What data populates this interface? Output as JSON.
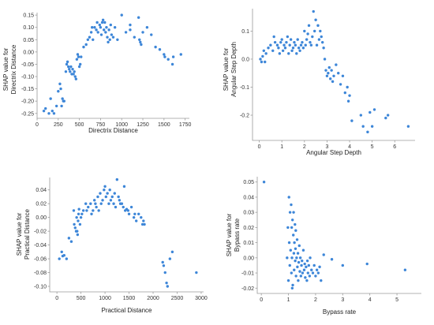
{
  "chart_data": [
    {
      "type": "scatter",
      "xlabel": "Directrix Distance",
      "ylabel_lines": [
        "SHAP value for",
        "Directrix Distance"
      ],
      "xlim": [
        0,
        1800
      ],
      "ylim": [
        -0.27,
        0.16
      ],
      "xticks": [
        0,
        250,
        500,
        750,
        1000,
        1250,
        1500,
        1750
      ],
      "yticks": [
        0.15,
        0.1,
        0.05,
        0.0,
        -0.05,
        -0.1,
        -0.15,
        -0.2,
        -0.25
      ],
      "ytick_labels": [
        "0.15",
        "0.10",
        "0.05",
        "0.00",
        "-0.05",
        "-0.10",
        "-0.15",
        "-0.20",
        "-0.25"
      ],
      "color": "#3d86d8",
      "points": [
        [
          80,
          -0.24
        ],
        [
          100,
          -0.23
        ],
        [
          140,
          -0.25
        ],
        [
          160,
          -0.19
        ],
        [
          180,
          -0.24
        ],
        [
          200,
          -0.25
        ],
        [
          230,
          -0.22
        ],
        [
          250,
          -0.16
        ],
        [
          270,
          -0.13
        ],
        [
          280,
          -0.15
        ],
        [
          290,
          -0.22
        ],
        [
          300,
          -0.19
        ],
        [
          310,
          -0.2
        ],
        [
          320,
          -0.2
        ],
        [
          340,
          -0.08
        ],
        [
          350,
          -0.05
        ],
        [
          360,
          -0.04
        ],
        [
          370,
          -0.06
        ],
        [
          380,
          -0.07
        ],
        [
          390,
          -0.08
        ],
        [
          400,
          -0.06
        ],
        [
          410,
          -0.09
        ],
        [
          420,
          -0.07
        ],
        [
          430,
          -0.09
        ],
        [
          440,
          -0.08
        ],
        [
          450,
          -0.1
        ],
        [
          460,
          -0.11
        ],
        [
          470,
          -0.03
        ],
        [
          480,
          -0.01
        ],
        [
          490,
          -0.02
        ],
        [
          500,
          -0.06
        ],
        [
          510,
          -0.05
        ],
        [
          520,
          -0.02
        ],
        [
          550,
          0.02
        ],
        [
          580,
          0.03
        ],
        [
          600,
          0.05
        ],
        [
          620,
          0.06
        ],
        [
          640,
          0.08
        ],
        [
          650,
          0.1
        ],
        [
          660,
          0.05
        ],
        [
          680,
          0.1
        ],
        [
          700,
          0.09
        ],
        [
          710,
          0.12
        ],
        [
          720,
          0.08
        ],
        [
          740,
          0.11
        ],
        [
          750,
          0.1
        ],
        [
          760,
          0.07
        ],
        [
          770,
          0.12
        ],
        [
          780,
          0.13
        ],
        [
          790,
          0.09
        ],
        [
          800,
          0.12
        ],
        [
          810,
          0.08
        ],
        [
          820,
          0.1
        ],
        [
          830,
          0.06
        ],
        [
          840,
          0.04
        ],
        [
          850,
          0.09
        ],
        [
          860,
          0.05
        ],
        [
          870,
          0.11
        ],
        [
          880,
          0.07
        ],
        [
          900,
          0.06
        ],
        [
          920,
          0.1
        ],
        [
          950,
          0.05
        ],
        [
          1000,
          0.15
        ],
        [
          1050,
          0.08
        ],
        [
          1100,
          0.11
        ],
        [
          1150,
          0.06
        ],
        [
          1200,
          0.14
        ],
        [
          1210,
          0.05
        ],
        [
          1220,
          0.04
        ],
        [
          1230,
          0.03
        ],
        [
          1300,
          0.1
        ],
        [
          1400,
          0.02
        ],
        [
          1450,
          0.01
        ],
        [
          1500,
          -0.01
        ],
        [
          1510,
          -0.02
        ],
        [
          1550,
          -0.03
        ],
        [
          1600,
          -0.05
        ],
        [
          1610,
          -0.02
        ],
        [
          1700,
          -0.01
        ],
        [
          1350,
          0.07
        ],
        [
          1250,
          0.08
        ],
        [
          1100,
          0.09
        ]
      ]
    },
    {
      "type": "scatter",
      "xlabel": "Angular Step Depth",
      "ylabel_lines": [
        "SHAP value for",
        "Angular Step Depth"
      ],
      "xlim": [
        -0.3,
        6.9
      ],
      "ylim": [
        -0.29,
        0.18
      ],
      "xticks": [
        0,
        1,
        2,
        3,
        4,
        5,
        6
      ],
      "yticks": [
        0.1,
        0.0,
        -0.1,
        -0.2
      ],
      "ytick_labels": [
        "0.1",
        "0.0",
        "-0.1",
        "-0.2"
      ],
      "color": "#3d86d8",
      "points": [
        [
          0.05,
          0.0
        ],
        [
          0.1,
          -0.01
        ],
        [
          0.15,
          0.01
        ],
        [
          0.2,
          0.03
        ],
        [
          0.25,
          -0.01
        ],
        [
          0.3,
          0.02
        ],
        [
          0.4,
          0.04
        ],
        [
          0.5,
          0.05
        ],
        [
          0.6,
          0.03
        ],
        [
          0.65,
          0.08
        ],
        [
          0.7,
          0.06
        ],
        [
          0.8,
          0.05
        ],
        [
          0.85,
          0.04
        ],
        [
          0.9,
          0.02
        ],
        [
          0.95,
          0.06
        ],
        [
          1.0,
          0.07
        ],
        [
          1.05,
          0.03
        ],
        [
          1.1,
          0.05
        ],
        [
          1.15,
          0.04
        ],
        [
          1.2,
          0.06
        ],
        [
          1.25,
          0.08
        ],
        [
          1.3,
          0.02
        ],
        [
          1.35,
          0.05
        ],
        [
          1.4,
          0.07
        ],
        [
          1.45,
          0.03
        ],
        [
          1.5,
          0.04
        ],
        [
          1.55,
          0.06
        ],
        [
          1.6,
          0.05
        ],
        [
          1.65,
          0.02
        ],
        [
          1.7,
          0.07
        ],
        [
          1.75,
          0.04
        ],
        [
          1.8,
          0.03
        ],
        [
          1.85,
          0.05
        ],
        [
          1.9,
          0.06
        ],
        [
          1.95,
          0.04
        ],
        [
          2.0,
          0.1
        ],
        [
          2.05,
          0.05
        ],
        [
          2.1,
          0.07
        ],
        [
          2.15,
          0.09
        ],
        [
          2.2,
          0.12
        ],
        [
          2.25,
          0.06
        ],
        [
          2.3,
          0.05
        ],
        [
          2.35,
          0.08
        ],
        [
          2.4,
          0.17
        ],
        [
          2.45,
          0.1
        ],
        [
          2.5,
          0.14
        ],
        [
          2.55,
          0.05
        ],
        [
          2.6,
          0.12
        ],
        [
          2.65,
          0.07
        ],
        [
          2.7,
          0.1
        ],
        [
          2.75,
          0.08
        ],
        [
          2.8,
          0.06
        ],
        [
          2.85,
          0.04
        ],
        [
          2.9,
          0.0
        ],
        [
          2.95,
          -0.04
        ],
        [
          3.0,
          -0.06
        ],
        [
          3.05,
          -0.05
        ],
        [
          3.1,
          -0.03
        ],
        [
          3.15,
          -0.07
        ],
        [
          3.2,
          -0.04
        ],
        [
          3.25,
          -0.08
        ],
        [
          3.3,
          -0.06
        ],
        [
          3.4,
          -0.02
        ],
        [
          3.5,
          -0.05
        ],
        [
          3.6,
          -0.09
        ],
        [
          3.7,
          -0.06
        ],
        [
          3.8,
          -0.12
        ],
        [
          3.9,
          -0.1
        ],
        [
          3.95,
          -0.15
        ],
        [
          4.0,
          -0.13
        ],
        [
          4.1,
          -0.22
        ],
        [
          4.5,
          -0.2
        ],
        [
          4.6,
          -0.24
        ],
        [
          4.8,
          -0.26
        ],
        [
          4.9,
          -0.19
        ],
        [
          5.0,
          -0.24
        ],
        [
          5.1,
          -0.18
        ],
        [
          5.6,
          -0.21
        ],
        [
          5.7,
          -0.2
        ],
        [
          6.6,
          -0.24
        ]
      ]
    },
    {
      "type": "scatter",
      "xlabel": "Practical Distance",
      "ylabel_lines": [
        "SHAP value for",
        "Practical Distance"
      ],
      "xlim": [
        -150,
        3050
      ],
      "ylim": [
        -0.108,
        0.058
      ],
      "xticks": [
        0,
        500,
        1000,
        1500,
        2000,
        2500,
        3000
      ],
      "yticks": [
        0.04,
        0.02,
        0.0,
        -0.02,
        -0.04,
        -0.06,
        -0.08,
        -0.1
      ],
      "ytick_labels": [
        "0.04",
        "0.02",
        "0.00",
        "-0.02",
        "-0.04",
        "-0.06",
        "-0.08",
        "-0.10"
      ],
      "color": "#3d86d8",
      "points": [
        [
          50,
          -0.06
        ],
        [
          100,
          -0.05
        ],
        [
          120,
          -0.056
        ],
        [
          150,
          -0.055
        ],
        [
          200,
          -0.06
        ],
        [
          250,
          -0.03
        ],
        [
          300,
          -0.035
        ],
        [
          350,
          0.01
        ],
        [
          360,
          -0.01
        ],
        [
          380,
          -0.015
        ],
        [
          400,
          -0.02
        ],
        [
          410,
          0.0
        ],
        [
          420,
          -0.02
        ],
        [
          430,
          -0.025
        ],
        [
          440,
          -0.005
        ],
        [
          450,
          0.005
        ],
        [
          460,
          0.012
        ],
        [
          480,
          -0.01
        ],
        [
          500,
          0.0
        ],
        [
          520,
          0.005
        ],
        [
          550,
          0.01
        ],
        [
          600,
          0.02
        ],
        [
          620,
          0.01
        ],
        [
          650,
          0.015
        ],
        [
          700,
          0.02
        ],
        [
          720,
          0.005
        ],
        [
          750,
          0.01
        ],
        [
          780,
          0.025
        ],
        [
          800,
          0.02
        ],
        [
          820,
          0.015
        ],
        [
          850,
          0.03
        ],
        [
          870,
          0.01
        ],
        [
          900,
          0.035
        ],
        [
          920,
          0.02
        ],
        [
          950,
          0.025
        ],
        [
          980,
          0.04
        ],
        [
          1000,
          0.045
        ],
        [
          1020,
          0.03
        ],
        [
          1050,
          0.035
        ],
        [
          1080,
          0.02
        ],
        [
          1100,
          0.04
        ],
        [
          1120,
          0.025
        ],
        [
          1150,
          0.03
        ],
        [
          1180,
          0.02
        ],
        [
          1200,
          0.035
        ],
        [
          1220,
          0.015
        ],
        [
          1250,
          0.055
        ],
        [
          1280,
          0.03
        ],
        [
          1300,
          0.025
        ],
        [
          1320,
          0.02
        ],
        [
          1350,
          0.02
        ],
        [
          1380,
          0.015
        ],
        [
          1400,
          0.045
        ],
        [
          1420,
          0.01
        ],
        [
          1450,
          0.012
        ],
        [
          1480,
          0.01
        ],
        [
          1500,
          0.005
        ],
        [
          1550,
          0.015
        ],
        [
          1600,
          0.0
        ],
        [
          1620,
          0.005
        ],
        [
          1650,
          -0.005
        ],
        [
          1700,
          0.005
        ],
        [
          1750,
          0.0
        ],
        [
          1780,
          -0.01
        ],
        [
          1800,
          -0.005
        ],
        [
          1820,
          -0.01
        ],
        [
          2200,
          -0.065
        ],
        [
          2220,
          -0.07
        ],
        [
          2250,
          -0.08
        ],
        [
          2280,
          -0.095
        ],
        [
          2300,
          -0.1
        ],
        [
          2350,
          -0.06
        ],
        [
          2400,
          -0.05
        ],
        [
          2900,
          -0.08
        ]
      ]
    },
    {
      "type": "scatter",
      "xlabel": "Bypass rate",
      "ylabel_lines": [
        "SHAP value for",
        "Bypass rate"
      ],
      "xlim": [
        -0.15,
        5.9
      ],
      "ylim": [
        -0.0235,
        0.0535
      ],
      "xticks": [
        0,
        1,
        2,
        3,
        4,
        5
      ],
      "yticks": [
        0.05,
        0.04,
        0.03,
        0.02,
        0.01,
        0.0,
        -0.01,
        -0.02
      ],
      "ytick_labels": [
        "0.05",
        "0.04",
        "0.03",
        "0.02",
        "0.01",
        "0.00",
        "-0.01",
        "-0.02"
      ],
      "color": "#3d86d8",
      "points": [
        [
          0.1,
          0.05
        ],
        [
          0.95,
          0.0
        ],
        [
          0.98,
          0.02
        ],
        [
          1.0,
          -0.015
        ],
        [
          1.02,
          0.04
        ],
        [
          1.03,
          0.01
        ],
        [
          1.05,
          -0.005
        ],
        [
          1.06,
          0.03
        ],
        [
          1.08,
          0.005
        ],
        [
          1.1,
          0.035
        ],
        [
          1.11,
          -0.01
        ],
        [
          1.12,
          0.02
        ],
        [
          1.13,
          0.0
        ],
        [
          1.15,
          0.025
        ],
        [
          1.16,
          -0.018
        ],
        [
          1.18,
          0.015
        ],
        [
          1.2,
          0.003
        ],
        [
          1.21,
          -0.008
        ],
        [
          1.22,
          0.01
        ],
        [
          1.24,
          0.022
        ],
        [
          1.25,
          -0.002
        ],
        [
          1.26,
          0.006
        ],
        [
          1.28,
          -0.012
        ],
        [
          1.3,
          0.0
        ],
        [
          1.32,
          0.012
        ],
        [
          1.33,
          -0.006
        ],
        [
          1.35,
          0.003
        ],
        [
          1.36,
          -0.015
        ],
        [
          1.38,
          -0.003
        ],
        [
          1.4,
          0.008
        ],
        [
          1.42,
          -0.009
        ],
        [
          1.44,
          0.0
        ],
        [
          1.46,
          -0.012
        ],
        [
          1.48,
          -0.005
        ],
        [
          1.5,
          -0.002
        ],
        [
          1.52,
          -0.01
        ],
        [
          1.55,
          0.005
        ],
        [
          1.58,
          -0.008
        ],
        [
          1.6,
          -0.004
        ],
        [
          1.62,
          -0.013
        ],
        [
          1.65,
          -0.006
        ],
        [
          1.68,
          -0.015
        ],
        [
          1.7,
          -0.002
        ],
        [
          1.72,
          -0.01
        ],
        [
          1.75,
          -0.005
        ],
        [
          1.78,
          -0.012
        ],
        [
          1.8,
          0.0
        ],
        [
          1.85,
          -0.008
        ],
        [
          1.9,
          -0.01
        ],
        [
          1.95,
          -0.005
        ],
        [
          2.0,
          -0.012
        ],
        [
          2.05,
          -0.008
        ],
        [
          2.1,
          -0.01
        ],
        [
          2.15,
          -0.006
        ],
        [
          2.2,
          -0.015
        ],
        [
          2.3,
          0.002
        ],
        [
          2.6,
          -0.001
        ],
        [
          3.0,
          -0.005
        ],
        [
          3.9,
          -0.004
        ],
        [
          5.3,
          -0.008
        ],
        [
          1.14,
          -0.02
        ],
        [
          1.19,
          0.03
        ],
        [
          1.27,
          0.018
        ]
      ]
    }
  ]
}
